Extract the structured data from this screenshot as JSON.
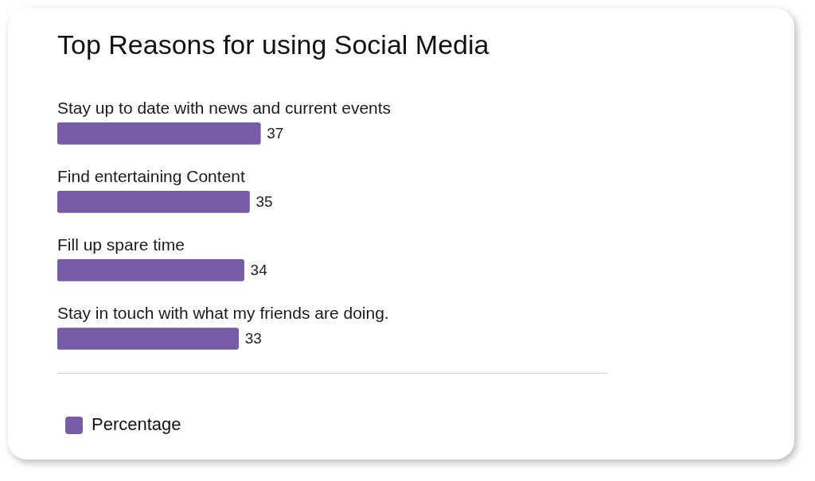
{
  "chart_data": {
    "type": "bar",
    "title": "Top Reasons for using Social Media",
    "orientation": "horizontal",
    "categories": [
      "Stay up to date with news and current events",
      "Find entertaining Content",
      "Fill up spare time",
      "Stay in touch with what my friends are doing."
    ],
    "series": [
      {
        "name": "Percentage",
        "color": "#765ba6",
        "values": [
          37,
          35,
          34,
          33
        ]
      }
    ],
    "xlim": [
      0,
      100
    ],
    "tick_labels": false,
    "grid": false,
    "data_labels": true,
    "legend": "bottom-left"
  }
}
